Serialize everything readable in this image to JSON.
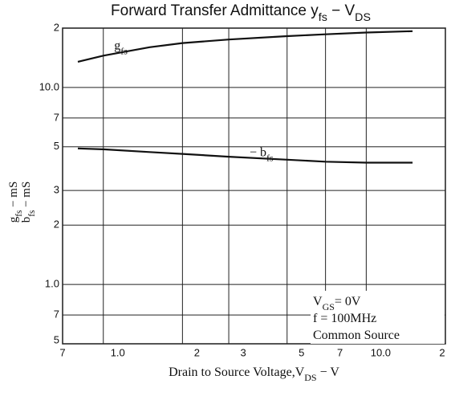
{
  "chart_data": {
    "type": "line",
    "title": [
      "Forward Transfer Admittance y",
      "fs",
      " − V",
      "DS"
    ],
    "y_label_top": [
      "g",
      "fs",
      "  −  mS"
    ],
    "y_label_bottom": [
      "b",
      "fs",
      "  −  mS"
    ],
    "x_label": [
      "Drain to Source Voltage,V",
      "DS",
      " − V"
    ],
    "annotation": [
      [
        "V",
        "GS",
        "= 0V"
      ],
      [
        "f = 100MHz"
      ],
      [
        "Common Source"
      ]
    ],
    "log_x": true,
    "log_y": true,
    "grid": true,
    "xlim": [
      0.7,
      20
    ],
    "ylim": [
      0.5,
      20
    ],
    "xticks": [
      {
        "value": 0.7,
        "label": "7"
      },
      {
        "value": 1,
        "label": "1.0"
      },
      2,
      3,
      5,
      7,
      {
        "value": 10,
        "label": "10.0"
      },
      {
        "value": 20,
        "label": "2"
      }
    ],
    "yticks": [
      {
        "value": 0.5,
        "label": "5"
      },
      {
        "value": 0.7,
        "label": "7"
      },
      {
        "value": 1,
        "label": "1.0"
      },
      2,
      3,
      5,
      7,
      {
        "value": 10,
        "label": "10.0"
      },
      {
        "value": 20,
        "label": "2"
      }
    ],
    "x": [
      0.8,
      1,
      1.5,
      2,
      3,
      5,
      7,
      10,
      15
    ],
    "series": [
      {
        "name": [
          "g",
          "fs"
        ],
        "color": "#111",
        "values": [
          13.5,
          14.5,
          16,
          16.8,
          17.5,
          18.2,
          18.6,
          19,
          19.3
        ]
      },
      {
        "name": [
          "− b",
          "fs"
        ],
        "color": "#111",
        "values": [
          4.9,
          4.85,
          4.7,
          4.6,
          4.45,
          4.3,
          4.2,
          4.15,
          4.15
        ]
      }
    ]
  }
}
